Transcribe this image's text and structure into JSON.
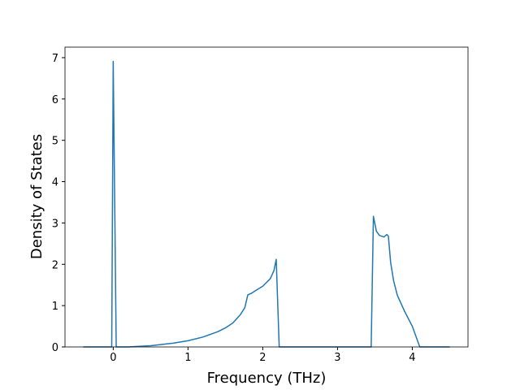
{
  "chart_data": {
    "type": "line",
    "xlabel": "Frequency (THz)",
    "ylabel": "Density of States",
    "x": [
      -0.4,
      -0.02,
      0,
      0.04,
      0.2,
      0.5,
      0.8,
      1.0,
      1.2,
      1.4,
      1.5,
      1.6,
      1.7,
      1.76,
      1.8,
      1.85,
      1.9,
      2.0,
      2.1,
      2.15,
      2.18,
      2.22,
      3.45,
      3.48,
      3.52,
      3.56,
      3.62,
      3.66,
      3.68,
      3.71,
      3.75,
      3.8,
      3.9,
      4.0,
      4.05,
      4.1,
      4.5
    ],
    "series": [
      {
        "color": "#1f77b4",
        "values": [
          0,
          0,
          6.91,
          0,
          0,
          0.03,
          0.09,
          0.15,
          0.24,
          0.37,
          0.46,
          0.58,
          0.78,
          0.95,
          1.26,
          1.3,
          1.36,
          1.47,
          1.65,
          1.85,
          2.12,
          0,
          0,
          3.16,
          2.8,
          2.7,
          2.66,
          2.72,
          2.68,
          2.05,
          1.6,
          1.25,
          0.85,
          0.5,
          0.25,
          0,
          0
        ]
      }
    ],
    "xlim": [
      -0.645,
      4.745
    ],
    "ylim": [
      0,
      7.255
    ],
    "xticks": [
      0,
      1,
      2,
      3,
      4
    ],
    "yticks": [
      0,
      1,
      2,
      3,
      4,
      5,
      6,
      7
    ]
  }
}
